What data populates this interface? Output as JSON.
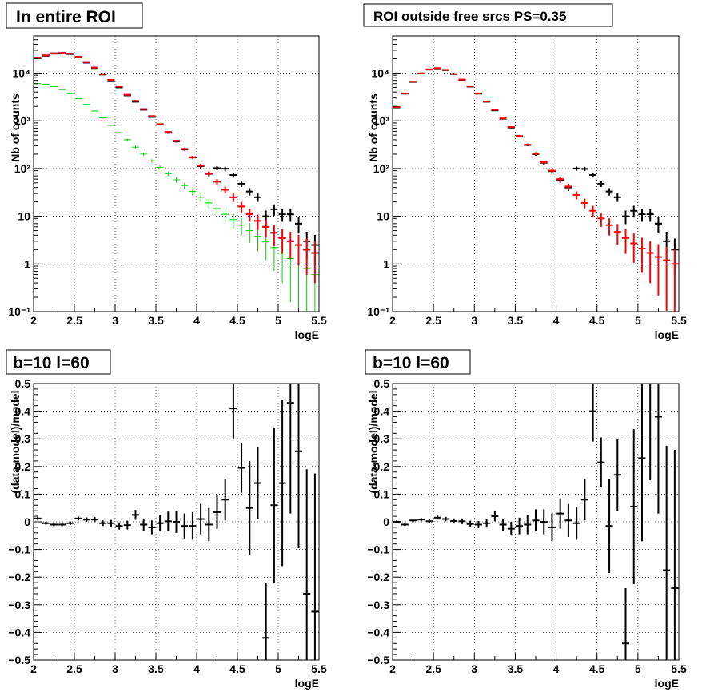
{
  "colors": {
    "data": "#000000",
    "model": "#ff0000",
    "component_blue": "#0000ff",
    "component_green": "#00cc00",
    "grid": "#000000"
  },
  "chart_data": [
    {
      "type": "scatter",
      "title": "In entire ROI",
      "xlabel": "logE",
      "ylabel": "Nb of counts",
      "xlim": [
        2,
        5.5
      ],
      "ylim": [
        0.1,
        60000
      ],
      "yscale": "log",
      "grid": true,
      "x_ticks": [
        "2",
        "2.5",
        "3",
        "3.5",
        "4",
        "4.5",
        "5",
        "5.5"
      ],
      "y_ticks": [
        "10⁻¹",
        "1",
        "10",
        "10²",
        "10³",
        "10⁴"
      ],
      "x": [
        2.05,
        2.15,
        2.25,
        2.35,
        2.45,
        2.55,
        2.65,
        2.75,
        2.85,
        2.95,
        3.05,
        3.15,
        3.25,
        3.35,
        3.45,
        3.55,
        3.65,
        3.75,
        3.85,
        3.95,
        4.05,
        4.15,
        4.25,
        4.35,
        4.45,
        4.55,
        4.65,
        4.75,
        4.85,
        4.95,
        5.05,
        5.15,
        5.25,
        5.35,
        5.45
      ],
      "series": [
        {
          "values": [
            21000,
            23500,
            26000,
            26500,
            25500,
            22000,
            17000,
            13000,
            9500,
            7200,
            5200,
            3500,
            2600,
            1750,
            1250,
            850,
            580,
            380,
            255,
            172,
            115,
            78,
            53,
            36,
            25,
            16,
            11,
            8,
            6,
            4.5,
            3.5,
            3,
            2.5,
            2,
            1.7
          ]
        },
        {
          "values": [
            20500,
            23000,
            25500,
            26000,
            25000,
            21500,
            16500,
            12700,
            9300,
            7000,
            5000,
            3400,
            2500,
            1700,
            1200,
            830,
            560,
            370,
            250,
            170,
            112,
            77,
            102,
            99,
            73,
            48,
            33,
            25,
            10,
            14,
            11,
            11,
            7,
            3,
            2.5
          ],
          "errors": true
        },
        {
          "values": [
            21000,
            23500,
            26000,
            26500,
            25500,
            22000,
            17000,
            13000,
            9500,
            7200,
            5200,
            3500,
            2600,
            1750,
            1250,
            850,
            580,
            380,
            255,
            172,
            115,
            78,
            53,
            36,
            25,
            16,
            11,
            8,
            6,
            4.5,
            3.5,
            3,
            2.5,
            2,
            1.7
          ],
          "model_errors": true
        },
        {
          "values": [
            6000,
            5800,
            5200,
            4500,
            3700,
            2900,
            2200,
            1600,
            1150,
            800,
            560,
            400,
            280,
            200,
            145,
            105,
            78,
            58,
            44,
            33,
            25,
            19,
            14.5,
            11,
            8.5,
            6.5,
            5,
            3.8,
            2.9,
            2.2,
            1.7,
            1.3,
            1,
            0.8,
            0.6
          ]
        }
      ]
    },
    {
      "type": "scatter",
      "title": "ROI outside free srcs PS=0.35",
      "xlabel": "logE",
      "ylabel": "Nb of counts",
      "xlim": [
        2,
        5.5
      ],
      "ylim": [
        0.1,
        60000
      ],
      "yscale": "log",
      "grid": true,
      "x_ticks": [
        "2",
        "2.5",
        "3",
        "3.5",
        "4",
        "4.5",
        "5",
        "5.5"
      ],
      "y_ticks": [
        "10⁻¹",
        "1",
        "10",
        "10²",
        "10³",
        "10⁴"
      ],
      "x": [
        2.05,
        2.15,
        2.25,
        2.35,
        2.45,
        2.55,
        2.65,
        2.75,
        2.85,
        2.95,
        3.05,
        3.15,
        3.25,
        3.35,
        3.45,
        3.55,
        3.65,
        3.75,
        3.85,
        3.95,
        4.05,
        4.15,
        4.25,
        4.35,
        4.45,
        4.55,
        4.65,
        4.75,
        4.85,
        4.95,
        5.05,
        5.15,
        5.25,
        5.35,
        5.45
      ],
      "series": [
        {
          "values": [
            1900,
            3700,
            6500,
            9800,
            11800,
            12500,
            11500,
            9500,
            7200,
            5200,
            3700,
            2500,
            1650,
            1100,
            720,
            470,
            310,
            200,
            132,
            88,
            58,
            40,
            100,
            98,
            73,
            48,
            33,
            25,
            10,
            13,
            11,
            11,
            7,
            3,
            2
          ],
          "errors": true
        },
        {
          "values": [
            1950,
            3750,
            6600,
            9900,
            12000,
            12700,
            11700,
            9600,
            7300,
            5300,
            3750,
            2550,
            1700,
            1120,
            740,
            480,
            315,
            205,
            135,
            90,
            60,
            42,
            28,
            19,
            13,
            9,
            6.5,
            4.7,
            3.5,
            2.7,
            2.1,
            1.7,
            1.4,
            1.2,
            1.0
          ],
          "model_errors": true
        }
      ]
    },
    {
      "type": "scatter",
      "title": "b=10 l=60",
      "xlabel": "logE",
      "ylabel": "(data-model)/model",
      "xlim": [
        2,
        5.5
      ],
      "ylim": [
        -0.5,
        0.5
      ],
      "grid": true,
      "x_ticks": [
        "2",
        "2.5",
        "3",
        "3.5",
        "4",
        "4.5",
        "5",
        "5.5"
      ],
      "y_ticks": [
        "−0.5",
        "−0.4",
        "−0.3",
        "−0.2",
        "−0.1",
        "0",
        "0.1",
        "0.2",
        "0.3",
        "0.4",
        "0.5"
      ],
      "x": [
        2.05,
        2.15,
        2.25,
        2.35,
        2.45,
        2.55,
        2.65,
        2.75,
        2.85,
        2.95,
        3.05,
        3.15,
        3.25,
        3.35,
        3.45,
        3.55,
        3.65,
        3.75,
        3.85,
        3.95,
        4.05,
        4.15,
        4.25,
        4.35,
        4.45,
        4.55,
        4.65,
        4.75,
        4.85,
        4.95,
        5.05,
        5.15,
        5.25,
        5.35,
        5.45
      ],
      "series": [
        {
          "values": [
            0.012,
            -0.005,
            -0.01,
            -0.01,
            -0.005,
            0.012,
            0.008,
            0.008,
            -0.005,
            -0.005,
            -0.015,
            -0.012,
            0.025,
            -0.01,
            -0.02,
            -0.005,
            0.002,
            0.0,
            -0.015,
            -0.015,
            0.01,
            -0.01,
            0.035,
            0.08,
            0.41,
            0.195,
            0.05,
            0.14,
            -0.42,
            0.06,
            0.14,
            0.43,
            0.255,
            -0.26,
            -0.325
          ],
          "err": [
            0.005,
            0.005,
            0.006,
            0.006,
            0.006,
            0.007,
            0.008,
            0.009,
            0.01,
            0.012,
            0.013,
            0.016,
            0.018,
            0.022,
            0.025,
            0.03,
            0.035,
            0.04,
            0.045,
            0.05,
            0.055,
            0.06,
            0.06,
            0.075,
            0.11,
            0.09,
            0.17,
            0.13,
            0.2,
            0.28,
            0.3,
            0.4,
            0.35,
            0.45,
            0.5
          ]
        }
      ]
    },
    {
      "type": "scatter",
      "title": "b=10 l=60",
      "xlabel": "logE",
      "ylabel": "(data-model)/model",
      "xlim": [
        2,
        5.5
      ],
      "ylim": [
        -0.5,
        0.5
      ],
      "grid": true,
      "x_ticks": [
        "2",
        "2.5",
        "3",
        "3.5",
        "4",
        "4.5",
        "5",
        "5.5"
      ],
      "y_ticks": [
        "−0.5",
        "−0.4",
        "−0.3",
        "−0.2",
        "−0.1",
        "0",
        "0.1",
        "0.2",
        "0.3",
        "0.4",
        "0.5"
      ],
      "x": [
        2.05,
        2.15,
        2.25,
        2.35,
        2.45,
        2.55,
        2.65,
        2.75,
        2.85,
        2.95,
        3.05,
        3.15,
        3.25,
        3.35,
        3.45,
        3.55,
        3.65,
        3.75,
        3.85,
        3.95,
        4.05,
        4.15,
        4.25,
        4.35,
        4.45,
        4.55,
        4.65,
        4.75,
        4.85,
        4.95,
        5.05,
        5.15,
        5.25,
        5.35,
        5.45
      ],
      "series": [
        {
          "values": [
            0.0,
            -0.01,
            0.005,
            0.008,
            0.002,
            0.015,
            0.01,
            0.003,
            0.002,
            -0.008,
            -0.01,
            -0.005,
            0.02,
            -0.01,
            -0.025,
            -0.015,
            -0.01,
            0.005,
            0.0,
            -0.02,
            0.03,
            0.005,
            -0.005,
            0.08,
            0.4,
            0.215,
            -0.015,
            0.17,
            -0.44,
            0.055,
            0.23,
            0.55,
            0.38,
            -0.175,
            -0.24
          ],
          "err": [
            0.005,
            0.005,
            0.006,
            0.006,
            0.006,
            0.007,
            0.008,
            0.009,
            0.01,
            0.012,
            0.013,
            0.016,
            0.018,
            0.022,
            0.025,
            0.03,
            0.035,
            0.04,
            0.045,
            0.05,
            0.055,
            0.06,
            0.06,
            0.075,
            0.11,
            0.09,
            0.17,
            0.13,
            0.2,
            0.28,
            0.3,
            0.4,
            0.35,
            0.45,
            0.5
          ]
        }
      ]
    }
  ]
}
